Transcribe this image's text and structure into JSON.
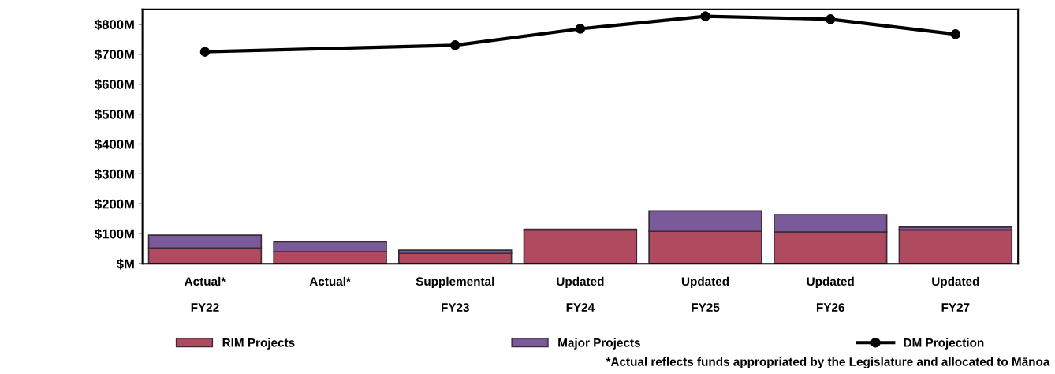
{
  "chart_data": {
    "type": "bar",
    "stacked": true,
    "categories": [
      "Actual*\n\nFY22",
      "Actual*",
      "Supplemental\n\nFY23",
      "Updated\n\nFY24",
      "Updated\n\nFY25",
      "Updated\n\nFY26",
      "Updated\n\nFY27"
    ],
    "series": [
      {
        "name": "RIM Projects",
        "color": "#b04a5e",
        "values": [
          52,
          40,
          34,
          113,
          108,
          106,
          113
        ]
      },
      {
        "name": "Major Projects",
        "color": "#7b5a9a",
        "values": [
          43,
          33,
          11,
          2,
          68,
          58,
          9
        ]
      },
      {
        "name": "DM Projection",
        "type": "line",
        "color": "#000000",
        "marker": "circle",
        "line_style": "solid",
        "values": [
          708,
          null,
          730,
          785,
          827,
          817,
          767
        ]
      }
    ],
    "ylim": [
      0,
      850
    ],
    "yticks": [
      {
        "value": 0,
        "label": "$M"
      },
      {
        "value": 100,
        "label": "$100M"
      },
      {
        "value": 200,
        "label": "$200M"
      },
      {
        "value": 300,
        "label": "$300M"
      },
      {
        "value": 400,
        "label": "$400M"
      },
      {
        "value": 500,
        "label": "$500M"
      },
      {
        "value": 600,
        "label": "$600M"
      },
      {
        "value": 700,
        "label": "$700M"
      },
      {
        "value": 800,
        "label": "$800M"
      }
    ],
    "grid": false,
    "legend": "bottom",
    "annotations": [
      "*Actual reflects funds appropriated by the Legislature and allocated to Mānoa"
    ]
  }
}
